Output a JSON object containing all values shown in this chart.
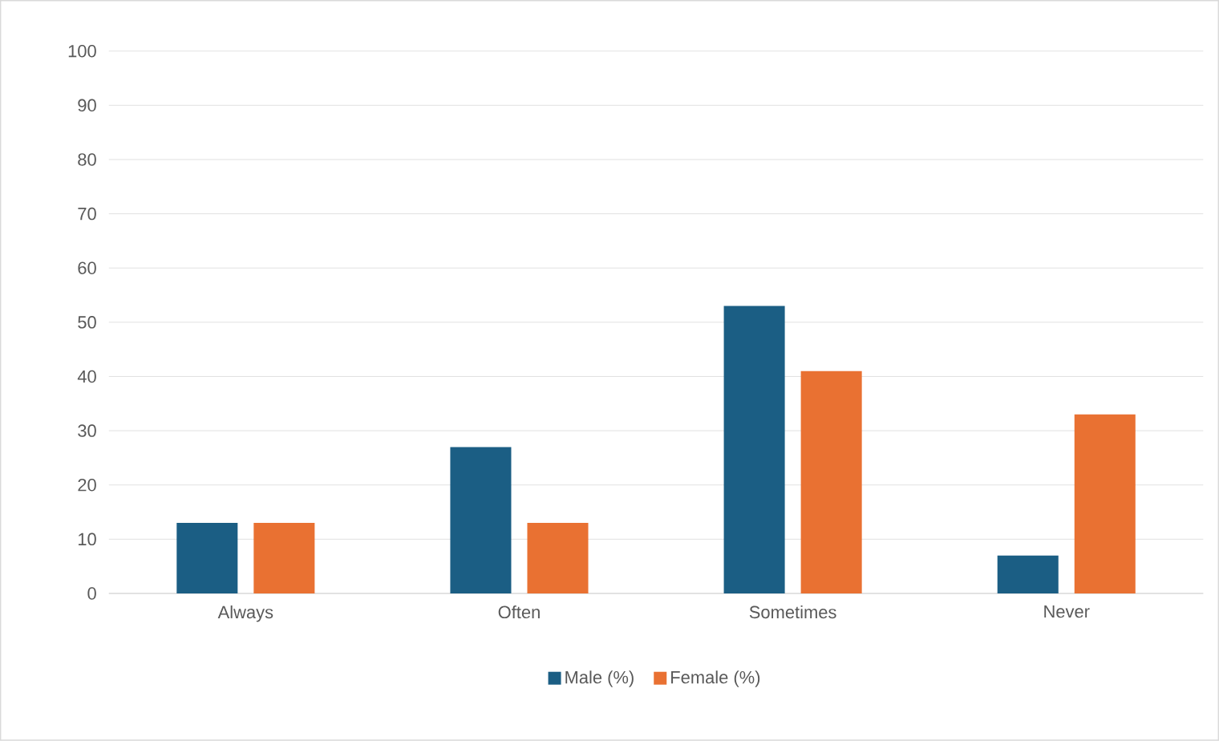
{
  "chart_data": {
    "type": "bar",
    "categories": [
      "Always",
      "Often",
      "Sometimes",
      "Never"
    ],
    "series": [
      {
        "name": "Male (%)",
        "color": "#1b5e84",
        "values": [
          13,
          27,
          53,
          7
        ]
      },
      {
        "name": "Female (%)",
        "color": "#e97132",
        "values": [
          13,
          13,
          41,
          33
        ]
      }
    ],
    "ylim": [
      0,
      100
    ],
    "yticks": [
      0,
      10,
      20,
      30,
      40,
      50,
      60,
      70,
      80,
      90,
      100
    ],
    "grid": "y",
    "legend": "bottom"
  }
}
